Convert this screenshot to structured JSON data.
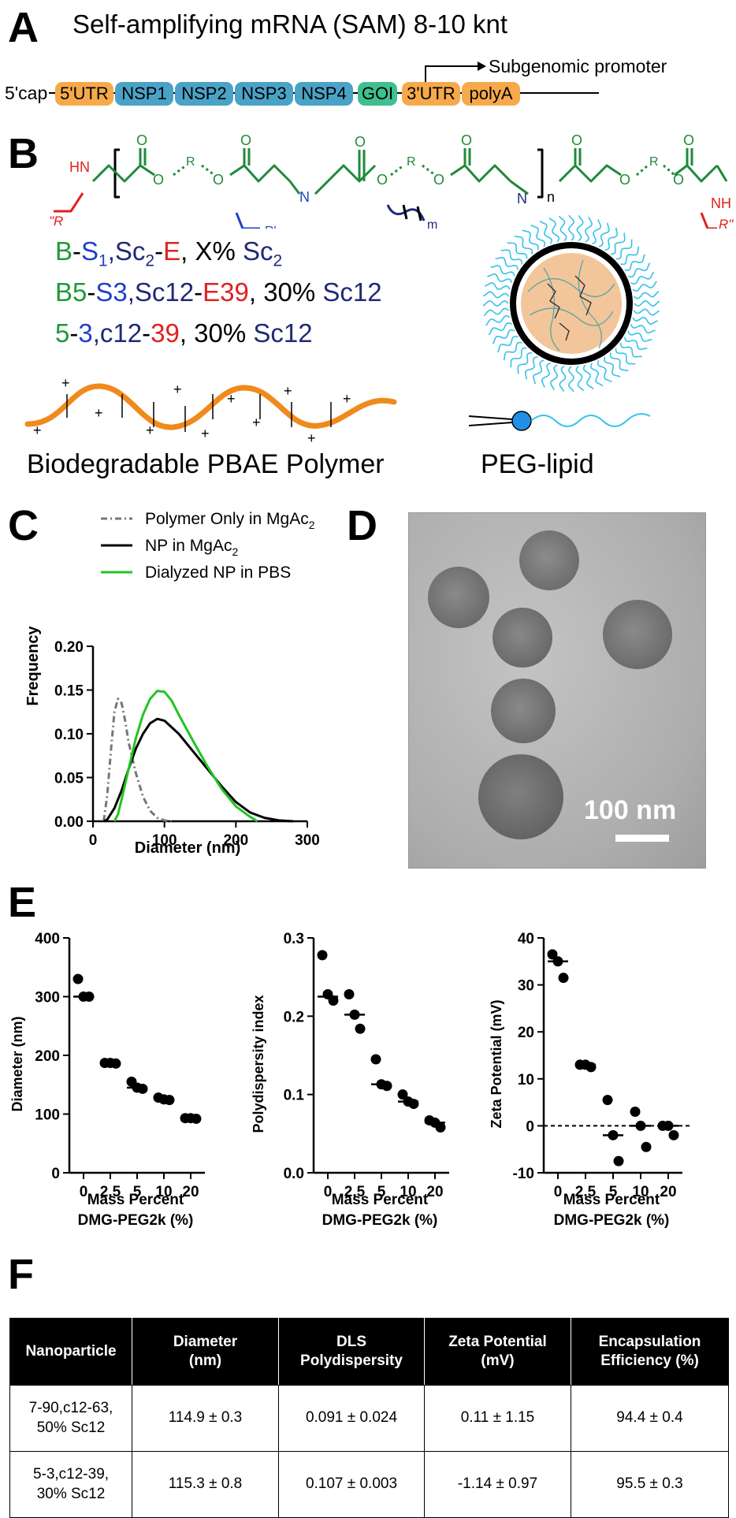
{
  "panels": {
    "a": "A",
    "b": "B",
    "c": "C",
    "d": "D",
    "e": "E",
    "f": "F"
  },
  "panel_a": {
    "title": "Self-amplifying mRNA (SAM) 8-10 knt",
    "cap": "5'cap",
    "subgenomic": "Subgenomic promoter",
    "segments": [
      {
        "label": "5'UTR",
        "color": "#f6a94a"
      },
      {
        "label": "NSP1",
        "color": "#4aa3c7"
      },
      {
        "label": "NSP2",
        "color": "#4aa3c7"
      },
      {
        "label": "NSP3",
        "color": "#4aa3c7"
      },
      {
        "label": "NSP4",
        "color": "#4aa3c7"
      },
      {
        "label": "GOI",
        "color": "#3fbf8f"
      },
      {
        "label": "3'UTR",
        "color": "#f6a94a"
      },
      {
        "label": "polyA",
        "color": "#f6a94a"
      }
    ]
  },
  "panel_b": {
    "chem": {
      "hn": "HN",
      "nh": "NH",
      "n": "N",
      "r": "R",
      "o": "O",
      "r_left": "\"R",
      "r_right": "R\"",
      "r_prime": "R'",
      "sub_n": "n",
      "sub_m": "m"
    },
    "line1": {
      "b": "B",
      "d1": "-",
      "s": "S",
      "s_sub": "1",
      "comma": ",Sc",
      "sc_sub": "2",
      "d2": "-",
      "e": "E",
      "x": ", X% ",
      "sc2": "Sc",
      "sc2_sub": "2"
    },
    "line2": {
      "b": "B5",
      "d1": "-",
      "s": "S3",
      "sc": ",Sc12",
      "d2": "-",
      "e": "E39",
      "pct": ", 30% ",
      "sc12": "Sc12"
    },
    "line3": {
      "b": "5",
      "d1": "-",
      "s": "3",
      "sc": ",c12",
      "d2": "-",
      "e": "39",
      "pct": ", 30% ",
      "sc12": "Sc12"
    },
    "plus": "+",
    "polymer_label": "Biodegradable PBAE Polymer",
    "peg_label": "PEG-lipid"
  },
  "panel_c": {
    "ylabel": "Frequency",
    "xlabel": "Diameter (nm)",
    "legend": [
      "Polymer Only in MgAc",
      "NP in MgAc",
      "Dialyzed NP in PBS"
    ],
    "legend_sub": "2",
    "colors": {
      "polymer": "#777777",
      "np": "#000000",
      "dialyzed": "#22c422"
    }
  },
  "chart_data": [
    {
      "type": "line",
      "xlabel": "Diameter (nm)",
      "ylabel": "Frequency",
      "xlim": [
        0,
        300
      ],
      "ylim": [
        0,
        0.2
      ],
      "xticks": [
        0,
        100,
        200,
        300
      ],
      "yticks": [
        0.0,
        0.05,
        0.1,
        0.15,
        0.2
      ],
      "ytick_labels": [
        "0.00",
        "0.05",
        "0.10",
        "0.15",
        "0.20"
      ],
      "legend": "top-right",
      "series": [
        {
          "name": "Polymer Only in MgAc2",
          "style": "dashed",
          "x": [
            15,
            20,
            25,
            30,
            35,
            40,
            45,
            50,
            60,
            70,
            80,
            90,
            100,
            110
          ],
          "y": [
            0.0,
            0.03,
            0.08,
            0.125,
            0.14,
            0.135,
            0.115,
            0.09,
            0.055,
            0.028,
            0.012,
            0.004,
            0.001,
            0.0
          ]
        },
        {
          "name": "NP in MgAc2",
          "style": "solid",
          "x": [
            15,
            20,
            30,
            40,
            50,
            60,
            70,
            80,
            90,
            100,
            120,
            140,
            160,
            180,
            200,
            220,
            240,
            260,
            280
          ],
          "y": [
            0.0,
            0.002,
            0.015,
            0.035,
            0.06,
            0.083,
            0.1,
            0.112,
            0.117,
            0.115,
            0.1,
            0.08,
            0.06,
            0.04,
            0.022,
            0.01,
            0.004,
            0.001,
            0.0
          ]
        },
        {
          "name": "Dialyzed NP in PBS",
          "style": "solid",
          "x": [
            30,
            35,
            40,
            50,
            60,
            70,
            80,
            90,
            100,
            110,
            120,
            140,
            160,
            180,
            200,
            220,
            230
          ],
          "y": [
            0.0,
            0.008,
            0.025,
            0.06,
            0.095,
            0.122,
            0.14,
            0.149,
            0.148,
            0.138,
            0.122,
            0.092,
            0.063,
            0.037,
            0.017,
            0.005,
            0.0
          ]
        }
      ]
    },
    {
      "type": "scatter",
      "ylabel": "Diameter (nm)",
      "xlabel": "Mass Percent DMG-PEG2k (%)",
      "categories": [
        "0",
        "2.5",
        "5",
        "10",
        "20"
      ],
      "ylim": [
        0,
        400
      ],
      "yticks": [
        0,
        100,
        200,
        300,
        400
      ],
      "points": [
        [
          330,
          300,
          300
        ],
        [
          187,
          187,
          186
        ],
        [
          155,
          145,
          143
        ],
        [
          128,
          125,
          124
        ],
        [
          93,
          93,
          92
        ]
      ],
      "means": [
        300,
        186,
        145,
        125,
        93
      ]
    },
    {
      "type": "scatter",
      "ylabel": "Polydispersity index",
      "xlabel": "Mass Percent DMG-PEG2k (%)",
      "categories": [
        "0",
        "2.5",
        "5",
        "10",
        "20"
      ],
      "ylim": [
        0,
        0.3
      ],
      "yticks": [
        0.0,
        0.1,
        0.2,
        0.3
      ],
      "ytick_labels": [
        "0.0",
        "0.1",
        "0.2",
        "0.3"
      ],
      "points": [
        [
          0.278,
          0.228,
          0.22
        ],
        [
          0.228,
          0.202,
          0.184
        ],
        [
          0.145,
          0.113,
          0.111
        ],
        [
          0.1,
          0.091,
          0.088
        ],
        [
          0.067,
          0.064,
          0.058
        ]
      ],
      "means": [
        0.225,
        0.202,
        0.113,
        0.091,
        0.064
      ]
    },
    {
      "type": "scatter",
      "ylabel": "Zeta Potential (mV)",
      "xlabel": "Mass Percent DMG-PEG2k (%)",
      "categories": [
        "0",
        "2.5",
        "5",
        "10",
        "20"
      ],
      "ylim": [
        -10,
        40
      ],
      "yticks": [
        -10,
        0,
        10,
        20,
        30,
        40
      ],
      "reference_line": 0,
      "points": [
        [
          36.5,
          35,
          31.5
        ],
        [
          13,
          13,
          12.5
        ],
        [
          5.5,
          -2,
          -7.5
        ],
        [
          3,
          0,
          -4.5
        ],
        [
          0,
          0,
          -2
        ]
      ],
      "means": [
        35,
        13,
        -2,
        0,
        0
      ]
    }
  ],
  "panel_d": {
    "scale_label": "100 nm"
  },
  "panel_e": {
    "xlabel_1": "Mass Percent",
    "xlabel_2": "DMG-PEG2k (%)",
    "charts": [
      {
        "ylabel": "Diameter (nm)"
      },
      {
        "ylabel": "Polydispersity index"
      },
      {
        "ylabel": "Zeta Potential (mV)"
      }
    ]
  },
  "table": {
    "headers": [
      [
        "Nanoparticle"
      ],
      [
        "Diameter",
        "(nm)"
      ],
      [
        "DLS",
        "Polydispersity"
      ],
      [
        "Zeta Potential",
        "(mV)"
      ],
      [
        "Encapsulation",
        "Efficiency (%)"
      ]
    ],
    "rows": [
      {
        "name": [
          "7-90,c12-63,",
          "50% Sc12"
        ],
        "diameter": "114.9 ± 0.3",
        "pdi": "0.091 ± 0.024",
        "zeta": "0.11 ± 1.15",
        "ee": "94.4 ± 0.4"
      },
      {
        "name": [
          "5-3,c12-39,",
          "30% Sc12"
        ],
        "diameter": "115.3 ± 0.8",
        "pdi": "0.107 ± 0.003",
        "zeta": "-1.14 ± 0.97",
        "ee": "95.5 ± 0.3"
      }
    ]
  }
}
